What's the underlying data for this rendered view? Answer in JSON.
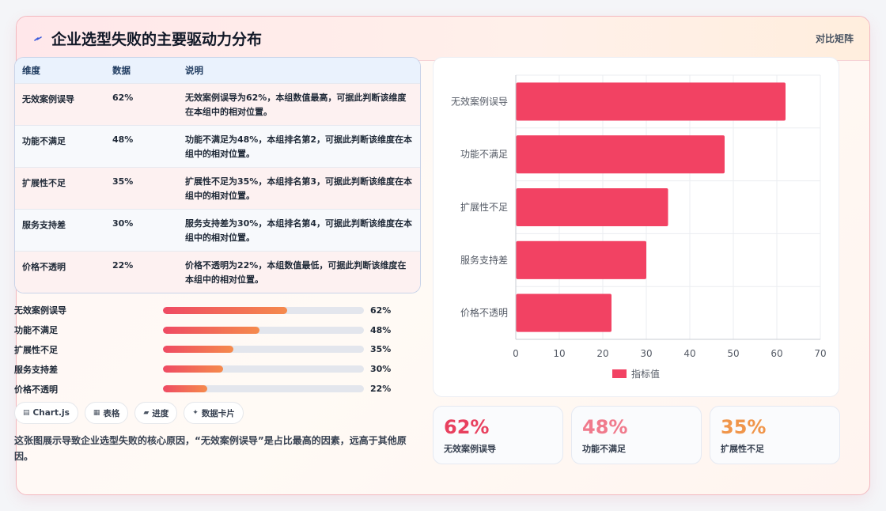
{
  "header": {
    "title": "企业选型失败的主要驱动力分布",
    "right_label": "对比矩阵"
  },
  "table": {
    "headers": [
      "维度",
      "数据",
      "说明"
    ],
    "rows": [
      {
        "dim": "无效案例误导",
        "value": "62%",
        "desc": "无效案例误导为62%，本组数值最高，可据此判断该维度在本组中的相对位置。"
      },
      {
        "dim": "功能不满足",
        "value": "48%",
        "desc": "功能不满足为48%，本组排名第2，可据此判断该维度在本组中的相对位置。"
      },
      {
        "dim": "扩展性不足",
        "value": "35%",
        "desc": "扩展性不足为35%，本组排名第3，可据此判断该维度在本组中的相对位置。"
      },
      {
        "dim": "服务支持差",
        "value": "30%",
        "desc": "服务支持差为30%，本组排名第4，可据此判断该维度在本组中的相对位置。"
      },
      {
        "dim": "价格不透明",
        "value": "22%",
        "desc": "价格不透明为22%，本组数值最低，可据此判断该维度在本组中的相对位置。"
      }
    ]
  },
  "progress": [
    {
      "label": "无效案例误导",
      "value": 62,
      "text": "62%"
    },
    {
      "label": "功能不满足",
      "value": 48,
      "text": "48%"
    },
    {
      "label": "扩展性不足",
      "value": 35,
      "text": "35%"
    },
    {
      "label": "服务支持差",
      "value": 30,
      "text": "30%"
    },
    {
      "label": "价格不透明",
      "value": 22,
      "text": "22%"
    }
  ],
  "chips": [
    {
      "icon": "chart-icon",
      "label": "Chart.js"
    },
    {
      "icon": "table-icon",
      "label": "表格"
    },
    {
      "icon": "progress-icon",
      "label": "进度"
    },
    {
      "icon": "sparkle-icon",
      "label": "数据卡片"
    }
  ],
  "summary": "这张图展示导致企业选型失败的核心原因，“无效案例误导”是占比最高的因素，远高于其他原因。",
  "kpis": [
    {
      "value": "62%",
      "label": "无效案例误导",
      "color": "#e8405e"
    },
    {
      "value": "48%",
      "label": "功能不满足",
      "color": "#f07a8c"
    },
    {
      "value": "35%",
      "label": "扩展性不足",
      "color": "#f0954a"
    }
  ],
  "chart_data": {
    "type": "bar",
    "orientation": "horizontal",
    "categories": [
      "无效案例误导",
      "功能不满足",
      "扩展性不足",
      "服务支持差",
      "价格不透明"
    ],
    "series": [
      {
        "name": "指标值",
        "values": [
          62,
          48,
          35,
          30,
          22
        ],
        "color": "#f24263"
      }
    ],
    "xlim": [
      0,
      70
    ],
    "xticks": [
      0,
      10,
      20,
      30,
      40,
      50,
      60,
      70
    ],
    "grid": true,
    "legend": "bottom"
  },
  "colors": {
    "accent": "#f24263",
    "gradient_end": "#f58a4c"
  }
}
